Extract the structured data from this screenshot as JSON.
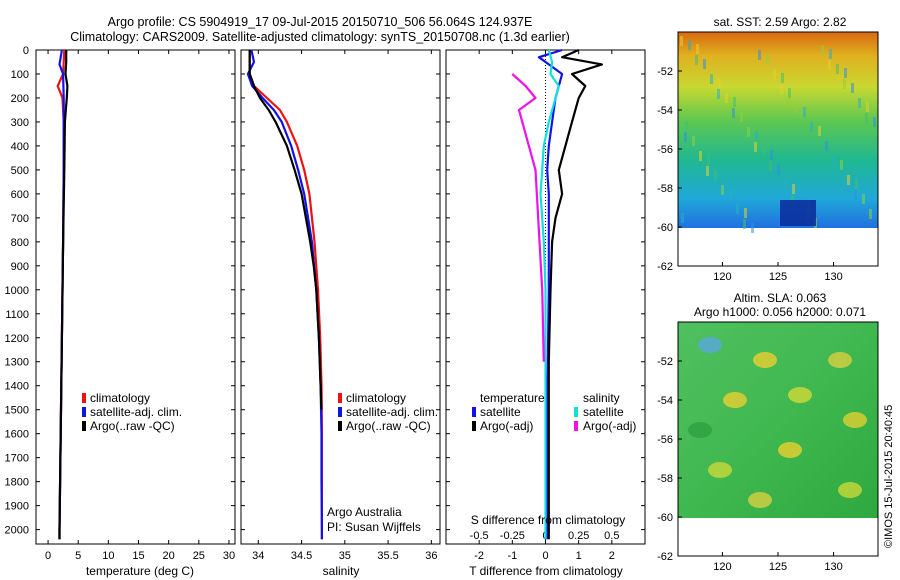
{
  "header": {
    "title_line1": "Argo profile: CS 5904919_17 09-Jul-2015 20150710_506 56.064S 124.937E",
    "title_line2": "Climatology: CARS2009. Satellite-adjusted climatology: synTS_20150708.nc (1.3d earlier)"
  },
  "watermark": "©IMOS 15-Jul-2015 20:40:45",
  "colors": {
    "red": "#ee1111",
    "blue": "#1111ee",
    "black": "#000000",
    "cyan": "#11e0e0",
    "magenta": "#ee11ee"
  },
  "chart_data": [
    {
      "id": "temperature",
      "type": "line",
      "xlabel": "temperature (deg C)",
      "xlim": [
        -2,
        31
      ],
      "xticks": [
        0,
        5,
        10,
        15,
        20,
        25,
        30
      ],
      "ylim": [
        2060,
        0
      ],
      "yticks": [
        0,
        100,
        200,
        300,
        400,
        500,
        600,
        700,
        800,
        900,
        1000,
        1100,
        1200,
        1300,
        1400,
        1500,
        1600,
        1700,
        1800,
        1900,
        2000
      ],
      "legend": [
        "climatology",
        "satellite-adj. clim.",
        "Argo(..raw -QC)"
      ],
      "series": [
        {
          "name": "climatology",
          "color": "#ee1111",
          "depth": [
            0,
            100,
            150,
            200,
            300,
            500,
            800,
            1200,
            1600,
            2000,
            2040
          ],
          "values": [
            2.7,
            2.5,
            1.6,
            2.4,
            2.6,
            2.6,
            2.5,
            2.3,
            2.1,
            1.9,
            1.9
          ]
        },
        {
          "name": "satellite-adj. clim.",
          "color": "#1111ee",
          "depth": [
            0,
            60,
            100,
            200,
            300,
            500,
            800,
            1200,
            1600,
            2000,
            2040
          ],
          "values": [
            2.3,
            1.9,
            2.5,
            2.6,
            2.6,
            2.6,
            2.5,
            2.3,
            2.1,
            1.9,
            1.9
          ]
        },
        {
          "name": "Argo(..raw -QC)",
          "color": "#000000",
          "depth": [
            0,
            50,
            100,
            150,
            200,
            230,
            300,
            500,
            800,
            1200,
            1600,
            2000,
            2040
          ],
          "values": [
            3.0,
            3.0,
            2.9,
            3.2,
            3.1,
            3.0,
            2.8,
            2.7,
            2.5,
            2.3,
            2.1,
            1.9,
            1.9
          ]
        }
      ]
    },
    {
      "id": "salinity",
      "type": "line",
      "xlabel": "salinity",
      "xlim": [
        33.8,
        36.1
      ],
      "xticks": [
        34,
        34.5,
        35,
        35.5,
        36
      ],
      "ylim": [
        2060,
        0
      ],
      "legend": [
        "climatology",
        "satellite-adj. clim.",
        "Argo(..raw -QC)"
      ],
      "annotation": [
        "Argo Australia",
        "PI: Susan Wijffels"
      ],
      "series": [
        {
          "name": "climatology",
          "color": "#ee1111",
          "depth": [
            0,
            100,
            150,
            200,
            250,
            300,
            400,
            500,
            600,
            800,
            1000,
            1200,
            1400,
            1600,
            1800,
            2000,
            2040
          ],
          "values": [
            33.9,
            33.9,
            33.95,
            34.1,
            34.25,
            34.33,
            34.45,
            34.53,
            34.59,
            34.65,
            34.69,
            34.715,
            34.73,
            34.735,
            34.735,
            34.735,
            34.735
          ]
        },
        {
          "name": "satellite-adj. clim.",
          "color": "#1111ee",
          "depth": [
            0,
            50,
            100,
            150,
            200,
            250,
            300,
            400,
            500,
            600,
            800,
            1000,
            1200,
            1400,
            1600,
            1800,
            2000,
            2040
          ],
          "values": [
            33.92,
            33.95,
            33.88,
            33.93,
            34.05,
            34.18,
            34.27,
            34.38,
            34.46,
            34.53,
            34.62,
            34.67,
            34.7,
            34.72,
            34.73,
            34.73,
            34.735,
            34.735
          ]
        },
        {
          "name": "Argo(..raw -QC)",
          "color": "#000000",
          "depth": [
            0,
            100,
            150,
            200,
            250,
            300,
            400,
            500,
            600,
            700,
            800,
            900,
            1000,
            1200,
            1400,
            1500
          ],
          "values": [
            33.9,
            33.9,
            33.95,
            34.02,
            34.12,
            34.2,
            34.33,
            34.42,
            34.5,
            34.55,
            34.6,
            34.64,
            34.67,
            34.7,
            34.72,
            34.73
          ]
        }
      ]
    },
    {
      "id": "difference",
      "type": "line",
      "xlabel": "T difference from climatology",
      "x2label": "S difference from climatology",
      "xlim": [
        -3,
        3
      ],
      "xticks": [
        -2,
        -1,
        0,
        1,
        2
      ],
      "x2ticks": [
        "-0.5",
        "-0.25",
        "0",
        "0.25",
        "0.5"
      ],
      "ylim": [
        2060,
        0
      ],
      "legend_titles": [
        "temperature",
        "salinity"
      ],
      "legend": [
        "satellite",
        "Argo(-adj)",
        "satellite",
        "Argo(-adj)"
      ],
      "series": [
        {
          "name": "satellite",
          "group": "temperature",
          "color": "#1111ee",
          "depth": [
            0,
            30,
            60,
            100,
            150,
            200,
            300,
            400,
            500,
            600,
            800,
            1000,
            1500,
            2000,
            2040
          ],
          "values": [
            0.5,
            -0.2,
            0.1,
            0.5,
            0.4,
            0.3,
            0.2,
            0.1,
            0.05,
            0.1,
            0.1,
            0.1,
            0.05,
            0.05,
            0.05
          ]
        },
        {
          "name": "Argo(-adj)",
          "group": "temperature",
          "color": "#000000",
          "depth": [
            0,
            30,
            60,
            100,
            150,
            200,
            300,
            400,
            500,
            600,
            700,
            800,
            1000,
            1300,
            1600,
            2000,
            2040
          ],
          "values": [
            1.0,
            0.5,
            1.7,
            0.8,
            1.2,
            1.0,
            0.8,
            0.6,
            0.4,
            0.5,
            0.3,
            0.2,
            0.15,
            0.1,
            0.1,
            0.1,
            0.1
          ]
        },
        {
          "name": "satellite",
          "group": "salinity",
          "color": "#11e0e0",
          "depth": [
            0,
            50,
            100,
            150,
            200,
            300,
            400,
            500,
            600,
            700,
            800,
            1000,
            1500,
            2000,
            2040
          ],
          "values": [
            0.1,
            0.2,
            0.15,
            0.4,
            0.3,
            0.1,
            -0.05,
            -0.1,
            -0.15,
            -0.1,
            -0.05,
            0,
            0,
            0,
            0
          ]
        },
        {
          "name": "Argo(-adj)",
          "group": "salinity",
          "color": "#ee11ee",
          "depth": [
            100,
            150,
            200,
            250,
            300,
            400,
            500,
            1000,
            1300
          ],
          "values": [
            -1.0,
            -0.6,
            -0.3,
            -0.8,
            -0.7,
            -0.5,
            -0.3,
            -0.1,
            -0.05
          ]
        }
      ]
    },
    {
      "id": "sst_map",
      "type": "heatmap",
      "title": "sat. SST: 2.59 Argo: 2.82",
      "xticks": [
        120,
        125,
        130
      ],
      "yticks": [
        -52,
        -54,
        -56,
        -58,
        -60,
        -62
      ],
      "xlim": [
        116,
        134
      ],
      "ylim": [
        -62,
        -50
      ],
      "data_bottom": -60
    },
    {
      "id": "sla_map",
      "type": "heatmap",
      "title_line1": "Altim. SLA: 0.063",
      "title_line2": "Argo h1000: 0.056 h2000: 0.071",
      "xticks": [
        120,
        125,
        130
      ],
      "yticks": [
        -52,
        -54,
        -56,
        -58,
        -60,
        -62
      ],
      "xlim": [
        116,
        134
      ],
      "ylim": [
        -62,
        -50
      ],
      "data_bottom": -60
    }
  ]
}
